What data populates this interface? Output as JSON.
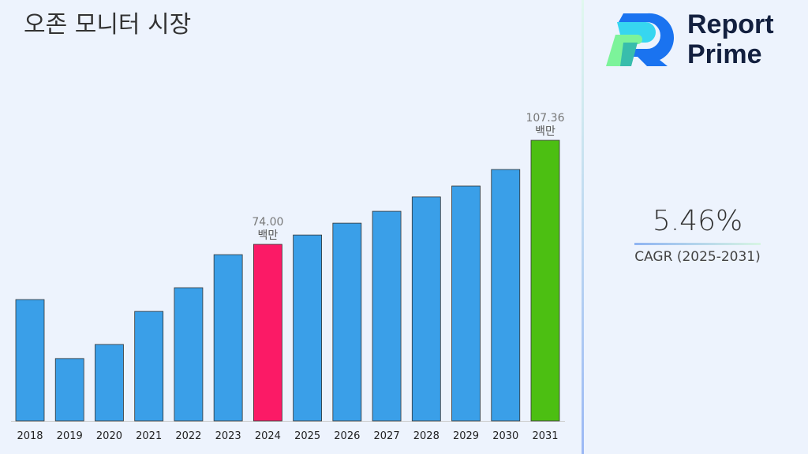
{
  "title": "오존 모니터 시장",
  "brand": {
    "line1": "Report",
    "line2": "Prime"
  },
  "cagr": {
    "value": "5.46%",
    "label": "CAGR (2025-2031)"
  },
  "chart_data": {
    "type": "bar",
    "categories": [
      "2018",
      "2019",
      "2020",
      "2021",
      "2022",
      "2023",
      "2024",
      "2025",
      "2026",
      "2027",
      "2028",
      "2029",
      "2030",
      "2031"
    ],
    "values": [
      56.3,
      37.4,
      41.9,
      52.5,
      60.1,
      70.7,
      74.0,
      77.0,
      80.8,
      84.6,
      89.2,
      92.7,
      98.0,
      107.36
    ],
    "colors": {
      "default": "#3a9fe8",
      "2024": "#fb1a66",
      "2031": "#4cbf12"
    },
    "data_labels": [
      {
        "category": "2024",
        "value": "74.00",
        "unit": "백만"
      },
      {
        "category": "2031",
        "value": "107.36",
        "unit": "백만"
      }
    ],
    "ylim": [
      17.4,
      110
    ],
    "grid": false,
    "yaxis_visible": false
  }
}
